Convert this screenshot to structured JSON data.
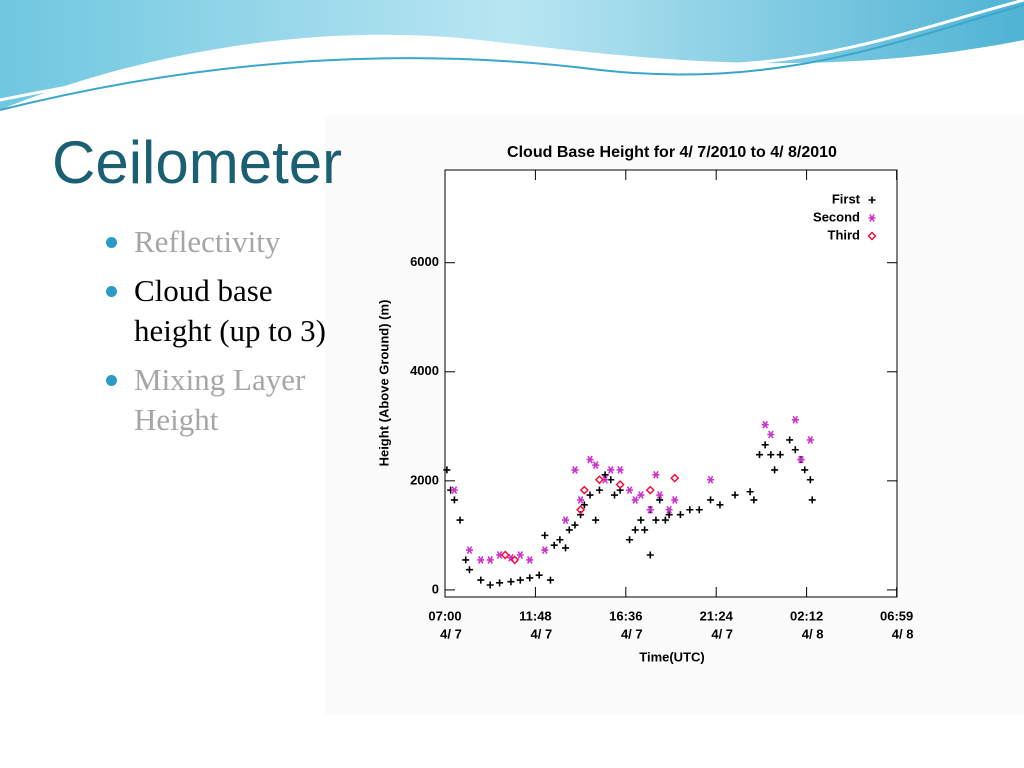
{
  "slide": {
    "title": "Ceilometer",
    "bullets": [
      {
        "lines": [
          "Reflectivity"
        ],
        "active": false
      },
      {
        "lines": [
          "Cloud base",
          "height (up to 3)"
        ],
        "active": true
      },
      {
        "lines": [
          "Mixing Layer",
          "Height"
        ],
        "active": false
      }
    ]
  },
  "chart_data": {
    "type": "scatter",
    "title": "Cloud Base Height for  4/ 7/2010 to  4/ 8/2010",
    "x_label": "Time(UTC)",
    "y_label": "Height (Above Ground) (m)",
    "xlim": [
      0,
      24
    ],
    "xticks": [
      {
        "value": 0,
        "label": "07:00",
        "date": "4/ 7"
      },
      {
        "value": 4.8,
        "label": "11:48",
        "date": "4/ 7"
      },
      {
        "value": 9.6,
        "label": "16:36",
        "date": "4/ 7"
      },
      {
        "value": 14.4,
        "label": "21:24",
        "date": "4/ 7"
      },
      {
        "value": 19.2,
        "label": "02:12",
        "date": "4/ 8"
      },
      {
        "value": 23.98,
        "label": "06:59",
        "date": "4/ 8"
      }
    ],
    "ylim": [
      -130,
      7700
    ],
    "yticks": [
      0,
      2000,
      4000,
      6000
    ],
    "legend": "top-right",
    "series": [
      {
        "name": "First",
        "marker": "plus",
        "color": "#000000",
        "x": [
          0.1,
          0.3,
          0.5,
          0.8,
          1.1,
          1.3,
          1.9,
          2.4,
          2.9,
          3.5,
          4.0,
          4.5,
          5.0,
          5.3,
          5.6,
          5.8,
          6.1,
          6.4,
          6.6,
          6.9,
          7.2,
          7.4,
          7.7,
          8.0,
          8.2,
          8.5,
          8.8,
          9.0,
          9.3,
          9.8,
          10.1,
          10.4,
          10.6,
          10.9,
          10.9,
          11.2,
          11.4,
          11.7,
          11.9,
          12.5,
          13.0,
          13.5,
          14.1,
          14.6,
          15.4,
          16.2,
          16.4,
          16.7,
          17.0,
          17.3,
          17.5,
          17.8,
          18.3,
          18.6,
          18.9,
          19.1,
          19.4,
          19.5
        ],
        "values": [
          2200,
          1830,
          1650,
          1280,
          550,
          370,
          180,
          90,
          130,
          150,
          180,
          220,
          270,
          1000,
          180,
          820,
          920,
          770,
          1100,
          1190,
          1380,
          1560,
          1740,
          1280,
          1830,
          2110,
          2020,
          1740,
          1830,
          920,
          1100,
          1280,
          1100,
          1470,
          640,
          1280,
          1650,
          1280,
          1380,
          1380,
          1470,
          1470,
          1650,
          1560,
          1740,
          1800,
          1650,
          2480,
          2660,
          2480,
          2200,
          2480,
          2750,
          2570,
          2390,
          2200,
          2020,
          1650
        ]
      },
      {
        "name": "Second",
        "marker": "star",
        "color": "#cc33cc",
        "x": [
          0.5,
          1.3,
          1.9,
          2.4,
          2.9,
          3.5,
          4.0,
          4.5,
          5.3,
          6.4,
          6.9,
          7.2,
          7.7,
          8.0,
          8.5,
          8.8,
          9.3,
          9.8,
          10.1,
          10.4,
          10.9,
          11.2,
          11.4,
          11.9,
          12.2,
          14.1,
          17.0,
          17.3,
          18.9,
          18.6,
          19.4
        ],
        "values": [
          1830,
          730,
          550,
          550,
          640,
          590,
          640,
          550,
          730,
          1280,
          2200,
          1650,
          2390,
          2290,
          2020,
          2200,
          2200,
          1830,
          1650,
          1740,
          1470,
          2110,
          1740,
          1470,
          1650,
          2020,
          3030,
          2850,
          2390,
          3120,
          2750
        ]
      },
      {
        "name": "Third",
        "marker": "diamond",
        "color": "#ff0033",
        "x": [
          3.2,
          3.7,
          7.2,
          7.4,
          8.2,
          9.3,
          10.9,
          12.2
        ],
        "values": [
          640,
          550,
          1470,
          1830,
          2020,
          1930,
          1830,
          2050
        ]
      }
    ]
  }
}
